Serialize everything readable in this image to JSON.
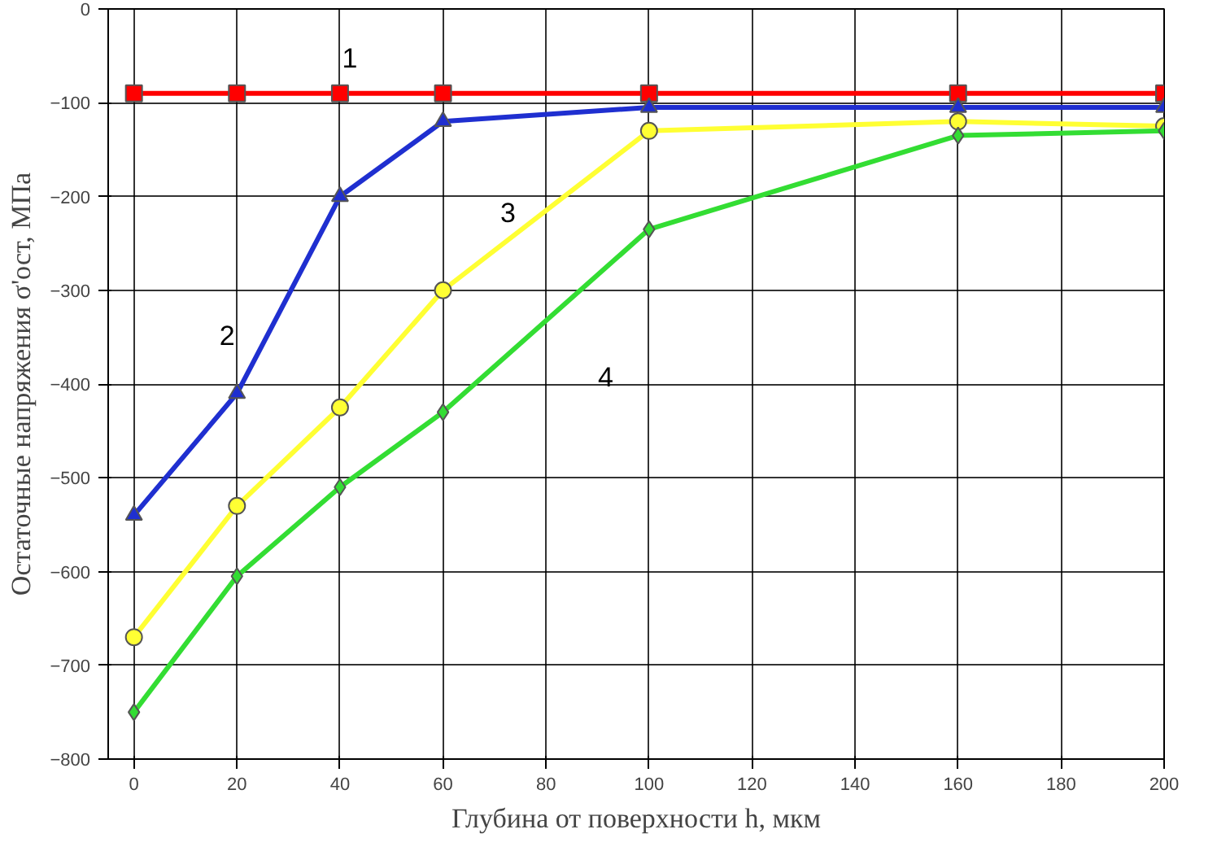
{
  "chart_data": {
    "type": "line",
    "xlabel": "Глубина от поверхности h, мкм",
    "ylabel": "Остаточные напряжения σ'ост, МПа",
    "x": [
      0,
      20,
      40,
      60,
      100,
      160,
      200
    ],
    "series": [
      {
        "name": "1",
        "color": "#ff0000",
        "marker": "square",
        "values": [
          -90,
          -90,
          -90,
          -90,
          -90,
          -90,
          -90
        ]
      },
      {
        "name": "2",
        "color": "#1f2fd0",
        "marker": "triangle",
        "values": [
          -540,
          -410,
          -200,
          -120,
          -105,
          -105,
          -105
        ]
      },
      {
        "name": "3",
        "color": "#ffff33",
        "marker": "circle",
        "values": [
          -670,
          -530,
          -425,
          -300,
          -130,
          -120,
          -125
        ]
      },
      {
        "name": "4",
        "color": "#33dd33",
        "marker": "diamond",
        "values": [
          -750,
          -605,
          -510,
          -430,
          -235,
          -135,
          -130
        ]
      }
    ],
    "xlim": [
      -5,
      200
    ],
    "ylim": [
      -800,
      0
    ],
    "xticks": [
      0,
      20,
      40,
      60,
      80,
      100,
      120,
      140,
      160,
      180,
      200
    ],
    "yticks": [
      -800,
      -700,
      -600,
      -500,
      -400,
      -300,
      -200,
      -100,
      0
    ],
    "grid": true,
    "line_style": "solid"
  }
}
